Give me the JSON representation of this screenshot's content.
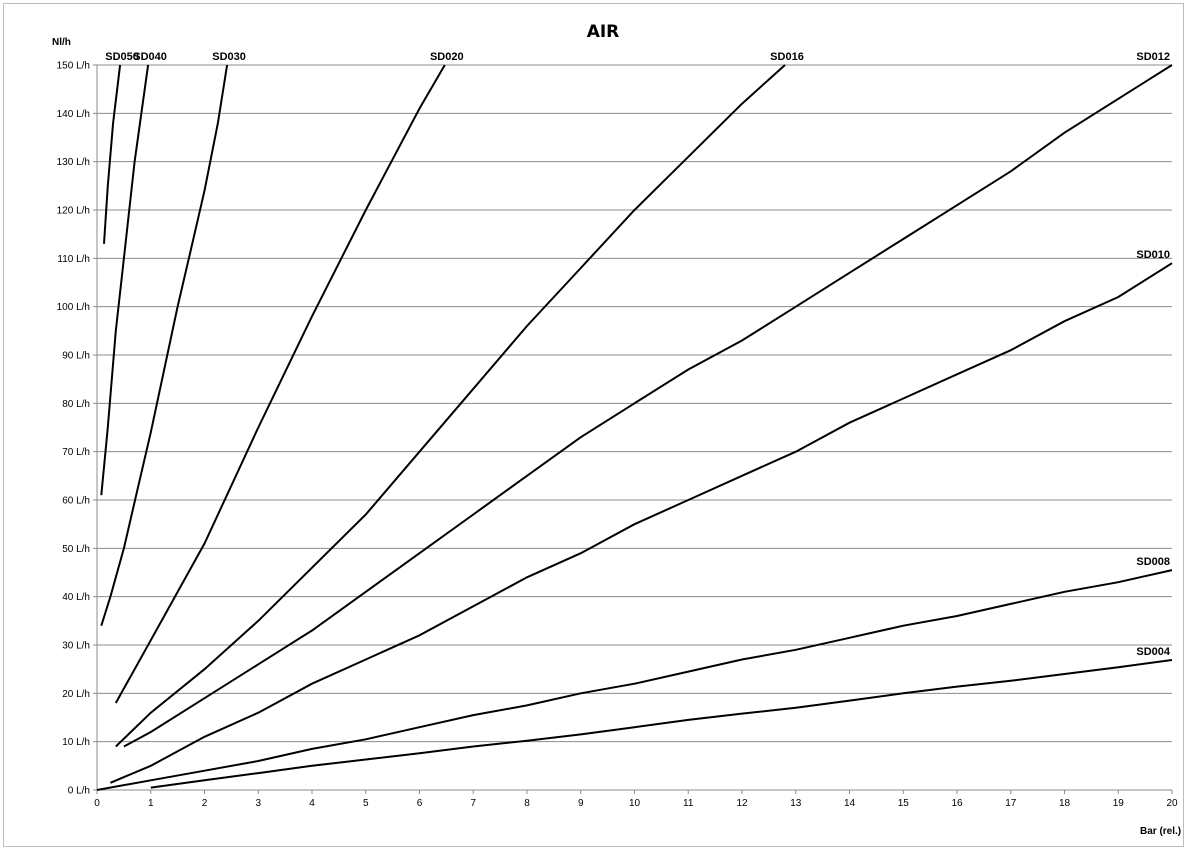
{
  "chart_data": {
    "type": "line",
    "title": "AIR",
    "ylabel": "Nl/h",
    "xlabel": "Bar (rel.)",
    "xlim": [
      0,
      20
    ],
    "ylim": [
      0,
      150
    ],
    "x_ticks": [
      "0",
      "1",
      "2",
      "3",
      "4",
      "5",
      "6",
      "7",
      "8",
      "9",
      "10",
      "11",
      "12",
      "13",
      "14",
      "15",
      "16",
      "17",
      "18",
      "19",
      "20"
    ],
    "y_ticks": [
      "0 L/h",
      "10 L/h",
      "20 L/h",
      "30 L/h",
      "40 L/h",
      "50 L/h",
      "60 L/h",
      "70 L/h",
      "80 L/h",
      "90 L/h",
      "100 L/h",
      "110 L/h",
      "120 L/h",
      "130 L/h",
      "140 L/h",
      "150 L/h"
    ],
    "grid": "horizontal",
    "series": [
      {
        "name": "SD050",
        "x": [
          0.13,
          0.2,
          0.3,
          0.43
        ],
        "y": [
          113,
          125,
          138,
          150
        ]
      },
      {
        "name": "SD040",
        "x": [
          0.08,
          0.2,
          0.35,
          0.5,
          0.7,
          0.95
        ],
        "y": [
          61,
          75,
          95,
          110,
          130,
          150
        ]
      },
      {
        "name": "SD030",
        "x": [
          0.08,
          0.25,
          0.5,
          0.75,
          1.0,
          1.25,
          1.5,
          1.75,
          2.0,
          2.25,
          2.42
        ],
        "y": [
          34,
          40,
          50,
          62,
          74,
          87,
          100,
          112,
          124,
          138,
          150
        ]
      },
      {
        "name": "SD020",
        "x": [
          0.35,
          1,
          2,
          3,
          4,
          5,
          6,
          6.47
        ],
        "y": [
          18,
          31,
          51,
          75,
          98,
          120,
          141,
          150
        ]
      },
      {
        "name": "SD016",
        "x": [
          0.35,
          1,
          2,
          3,
          4,
          5,
          6,
          7,
          8,
          9,
          10,
          11,
          12,
          12.8
        ],
        "y": [
          9,
          16,
          25,
          35,
          46,
          57,
          70,
          83,
          96,
          108,
          120,
          131,
          142,
          150
        ]
      },
      {
        "name": "SD012",
        "x": [
          0.5,
          1,
          2,
          3,
          4,
          5,
          6,
          7,
          8,
          9,
          10,
          11,
          12,
          13,
          14,
          15,
          16,
          17,
          18,
          19,
          20
        ],
        "y": [
          9,
          12,
          19,
          26,
          33,
          41,
          49,
          57,
          65,
          73,
          80,
          87,
          93,
          100,
          107,
          114,
          121,
          128,
          136,
          143,
          150
        ]
      },
      {
        "name": "SD010",
        "x": [
          0.25,
          1,
          2,
          3,
          4,
          5,
          6,
          7,
          8,
          9,
          10,
          11,
          12,
          13,
          14,
          15,
          16,
          17,
          18,
          19,
          20
        ],
        "y": [
          1.5,
          5,
          11,
          16,
          22,
          27,
          32,
          38,
          44,
          49,
          55,
          60,
          65,
          70,
          76,
          81,
          86,
          91,
          97,
          102,
          109
        ]
      },
      {
        "name": "SD008",
        "x": [
          0,
          1,
          2,
          3,
          4,
          5,
          6,
          7,
          8,
          9,
          10,
          11,
          12,
          13,
          14,
          15,
          16,
          17,
          18,
          19,
          20
        ],
        "y": [
          0,
          2,
          4,
          6,
          8.5,
          10.5,
          13,
          15.5,
          17.5,
          20,
          22,
          24.5,
          27,
          29,
          31.5,
          34,
          36,
          38.5,
          41,
          43,
          45.5
        ]
      },
      {
        "name": "SD004",
        "x": [
          1,
          2,
          3,
          4,
          5,
          6,
          7,
          8,
          9,
          10,
          11,
          12,
          13,
          14,
          15,
          16,
          17,
          18,
          19,
          20
        ],
        "y": [
          0.5,
          2,
          3.5,
          5,
          6.3,
          7.6,
          9,
          10.2,
          11.5,
          13,
          14.5,
          15.8,
          17,
          18.5,
          20,
          21.4,
          22.6,
          24,
          25.4,
          26.9
        ]
      }
    ]
  }
}
